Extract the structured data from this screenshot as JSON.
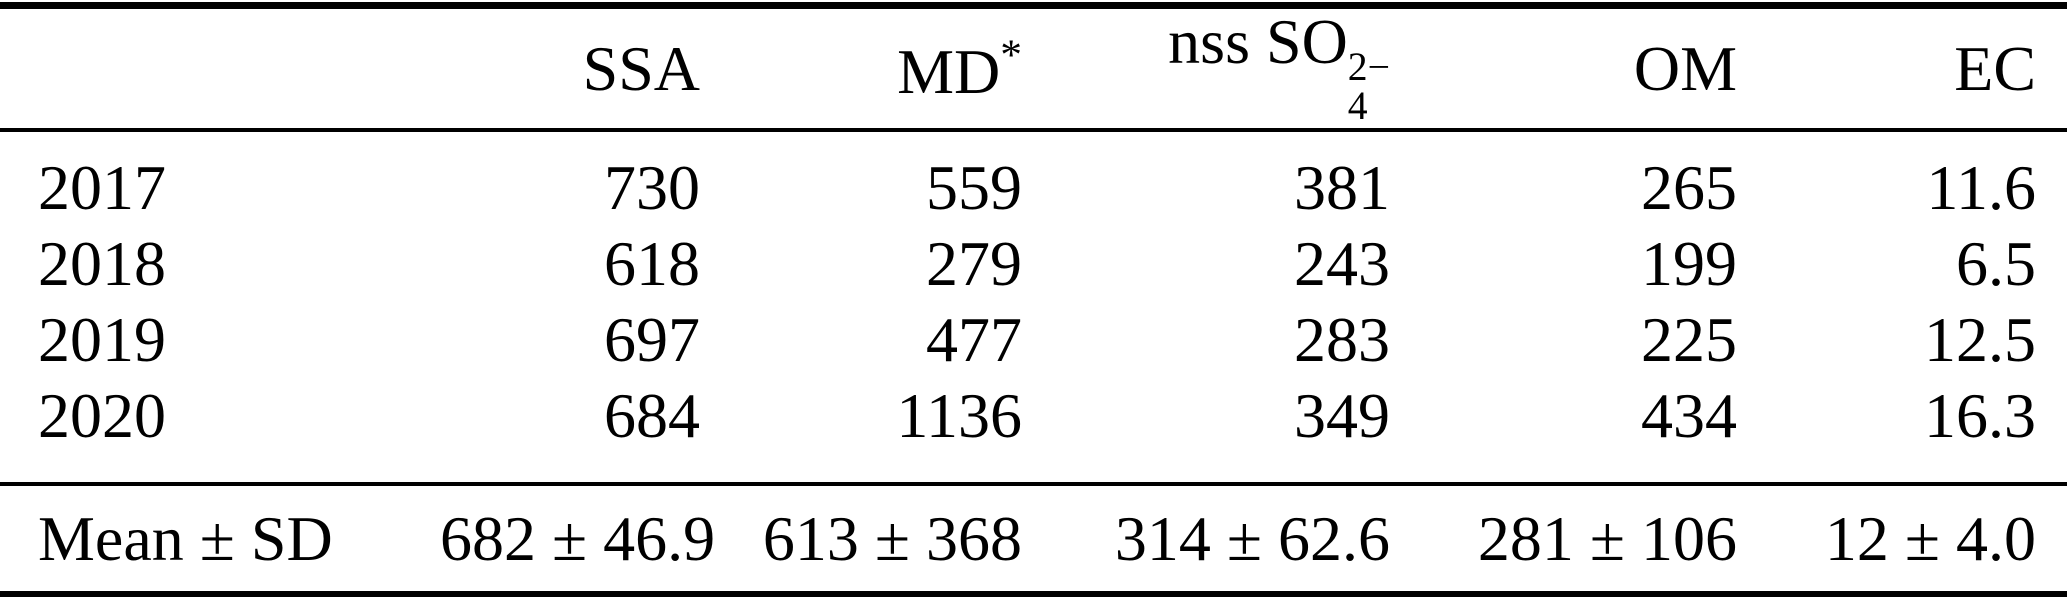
{
  "page": {
    "background": "#ffffff",
    "text_color": "#000000",
    "rule_color": "#000000"
  },
  "table": {
    "header": {
      "col0": "",
      "col1": "SSA",
      "col2": {
        "base": "MD",
        "sup": "*"
      },
      "col3": {
        "prefix": "nss SO",
        "sup": "2−",
        "sub": "4"
      },
      "col4": "OM",
      "col5": "EC"
    },
    "rows": [
      {
        "label": "2017",
        "values": [
          "730",
          "559",
          "381",
          "265",
          "11.6"
        ]
      },
      {
        "label": "2018",
        "values": [
          "618",
          "279",
          "243",
          "199",
          "6.5"
        ]
      },
      {
        "label": "2019",
        "values": [
          "697",
          "477",
          "283",
          "225",
          "12.5"
        ]
      },
      {
        "label": "2020",
        "values": [
          "684",
          "1136",
          "349",
          "434",
          "16.3"
        ]
      }
    ],
    "summary": {
      "label": "Mean ± SD",
      "values": [
        "682 ± 46.9",
        "613 ± 368",
        "314 ± 62.6",
        "281 ± 106",
        "12 ± 4.0"
      ]
    }
  },
  "chart_data": {
    "type": "table",
    "columns": [
      "",
      "SSA",
      "MD*",
      "nss SO4 2−",
      "OM",
      "EC"
    ],
    "rows": [
      [
        "2017",
        730,
        559,
        381,
        265,
        11.6
      ],
      [
        "2018",
        618,
        279,
        243,
        199,
        6.5
      ],
      [
        "2019",
        697,
        477,
        283,
        225,
        12.5
      ],
      [
        "2020",
        684,
        1136,
        349,
        434,
        16.3
      ],
      [
        "Mean ± SD",
        "682 ± 46.9",
        "613 ± 368",
        "314 ± 62.6",
        "281 ± 106",
        "12 ± 4.0"
      ]
    ]
  }
}
